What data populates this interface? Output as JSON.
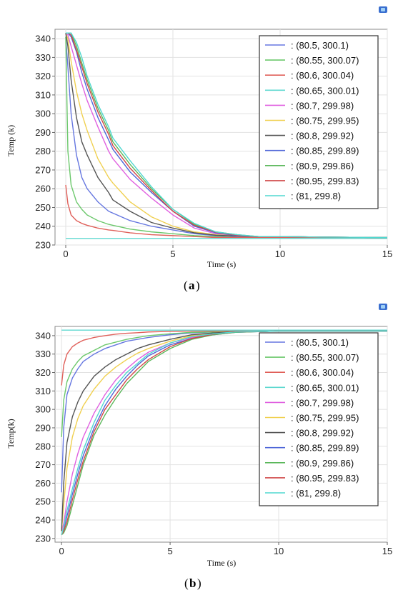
{
  "legend_labels": [
    ": (80.5, 300.1)",
    ": (80.55, 300.07)",
    ": (80.6, 300.04)",
    ": (80.65, 300.01)",
    ": (80.7, 299.98)",
    ": (80.75, 299.95)",
    ": (80.8, 299.92)",
    ": (80.85, 299.89)",
    ": (80.9, 299.86)",
    ": (80.95, 299.83)",
    ": (81, 299.8)"
  ],
  "colors": [
    "#6677e0",
    "#6cc86c",
    "#e0605a",
    "#5fd8d0",
    "#e060e0",
    "#f0d050",
    "#555555",
    "#4f67d8",
    "#5cb85c",
    "#d04848",
    "#50d8d0"
  ],
  "chart_data": [
    {
      "type": "line",
      "panel": "a",
      "xlabel": "Time (s)",
      "ylabel": "Temp (k)",
      "xlim": [
        -0.5,
        15
      ],
      "ylim": [
        230,
        345
      ],
      "xticks": [
        0,
        5,
        10,
        15
      ],
      "yticks": [
        230,
        240,
        250,
        260,
        270,
        280,
        290,
        300,
        310,
        320,
        330,
        340
      ],
      "grid": true,
      "legend_position": "top-right",
      "x": [
        0,
        0.1,
        0.25,
        0.5,
        0.75,
        1,
        1.5,
        2,
        2.2,
        3,
        4,
        5,
        6,
        7,
        8,
        9,
        10,
        12,
        15
      ],
      "series": [
        {
          "name": ": (80.5, 300.1)",
          "values": [
            341,
            325,
            300,
            278,
            266,
            260,
            253,
            248,
            247,
            243,
            240,
            238,
            236,
            235,
            234.5,
            234,
            234,
            234,
            233.8
          ]
        },
        {
          "name": ": (80.55, 300.07)",
          "values": [
            341,
            280,
            262,
            253,
            249,
            246,
            243,
            241,
            240.5,
            238.5,
            237,
            236,
            235,
            234.5,
            234,
            234,
            234,
            234,
            233.8
          ]
        },
        {
          "name": ": (80.6, 300.04)",
          "values": [
            262,
            252,
            246,
            243,
            241.5,
            240.5,
            239,
            238,
            237.8,
            236.5,
            235.5,
            235,
            234.5,
            234,
            234,
            234,
            234,
            233.8,
            233.8
          ]
        },
        {
          "name": ": (80.65, 300.01)",
          "values": [
            233.5,
            233.5,
            233.5,
            233.5,
            233.5,
            233.5,
            233.5,
            233.5,
            233.5,
            233.5,
            233.5,
            233.5,
            233.5,
            233.5,
            233.5,
            233.5,
            233.5,
            233.5,
            233.5
          ]
        },
        {
          "name": ": (80.7, 299.98)",
          "values": [
            343,
            342,
            336,
            326,
            316,
            307,
            293,
            280,
            276,
            265,
            255,
            246,
            239,
            236,
            235,
            234.5,
            234.5,
            234.2,
            234
          ]
        },
        {
          "name": ": (80.75, 299.95)",
          "values": [
            343,
            340,
            328,
            312,
            300,
            291,
            276,
            266,
            263,
            253,
            245,
            240,
            237,
            235.5,
            234.8,
            234.5,
            234.5,
            234.2,
            234
          ]
        },
        {
          "name": ": (80.8, 299.92)",
          "values": [
            343,
            336,
            318,
            298,
            285,
            278,
            266,
            258,
            254,
            248,
            242,
            239,
            236.5,
            235.2,
            234.8,
            234.5,
            234.5,
            234.2,
            234
          ]
        },
        {
          "name": ": (80.85, 299.89)",
          "values": [
            343,
            343,
            341,
            333,
            322,
            313,
            298,
            286,
            281,
            269,
            258,
            248,
            240,
            236.5,
            235,
            234.5,
            234.5,
            234.2,
            234
          ]
        },
        {
          "name": ": (80.9, 299.86)",
          "values": [
            343,
            343,
            343,
            336,
            327,
            318,
            303,
            291,
            285,
            273,
            260,
            249,
            241,
            237,
            235.5,
            234.5,
            234.5,
            234.2,
            234
          ]
        },
        {
          "name": ": (80.95, 299.83)",
          "values": [
            343,
            343,
            342,
            334,
            325,
            316,
            301,
            289,
            283,
            271,
            259,
            248,
            240.5,
            236.8,
            235.2,
            234.5,
            234.5,
            234.2,
            234
          ]
        },
        {
          "name": ": (81, 299.8)",
          "values": [
            343,
            343,
            343,
            338,
            330,
            320,
            305,
            293,
            287,
            275,
            261,
            249,
            241.5,
            237,
            235.5,
            234.5,
            234.5,
            234.2,
            234
          ]
        }
      ]
    },
    {
      "type": "line",
      "panel": "b",
      "xlabel": "Time (s)",
      "ylabel": "Temp(k)",
      "xlim": [
        -0.3,
        15
      ],
      "ylim": [
        228,
        345
      ],
      "xticks": [
        0,
        5,
        10,
        15
      ],
      "yticks": [
        230,
        240,
        250,
        260,
        270,
        280,
        290,
        300,
        310,
        320,
        330,
        340
      ],
      "grid": true,
      "legend_position": "top-right",
      "x": [
        0,
        0.1,
        0.25,
        0.5,
        0.75,
        1,
        1.5,
        2,
        2.5,
        3,
        3.5,
        4,
        5,
        6,
        7,
        8,
        10,
        12,
        15
      ],
      "series": [
        {
          "name": ": (80.5, 300.1)",
          "values": [
            255,
            290,
            308,
            317,
            322,
            326,
            330,
            333,
            335,
            337,
            338,
            339,
            340.5,
            341.5,
            342,
            342.5,
            342.5,
            342.5,
            342.5
          ]
        },
        {
          "name": ": (80.55, 300.07)",
          "values": [
            285,
            305,
            315,
            322,
            326,
            329,
            332,
            335,
            336.5,
            338,
            339,
            340,
            341,
            341.8,
            342,
            342.5,
            342.5,
            342.5,
            342.5
          ]
        },
        {
          "name": ": (80.6, 300.04)",
          "values": [
            313,
            324,
            330,
            334,
            336,
            337.5,
            339,
            340,
            340.8,
            341.3,
            341.6,
            342,
            342.3,
            342.5,
            342.5,
            342.5,
            342.5,
            342.5,
            342.5
          ]
        },
        {
          "name": ": (80.65, 300.01)",
          "values": [
            343,
            343,
            343,
            343,
            343,
            343,
            343,
            343,
            343,
            343,
            343,
            343,
            343,
            343,
            343,
            343,
            343,
            343,
            343
          ]
        },
        {
          "name": ": (80.7, 299.98)",
          "values": [
            234,
            238,
            250,
            265,
            276,
            285,
            298,
            308,
            316,
            322,
            327,
            331,
            336,
            339,
            341,
            342,
            342.5,
            342.5,
            342.5
          ]
        },
        {
          "name": ": (80.75, 299.95)",
          "values": [
            234,
            248,
            268,
            285,
            295,
            302,
            311,
            318,
            323,
            327,
            330.5,
            333,
            337,
            340,
            341.5,
            342,
            342.5,
            342.5,
            342.5
          ]
        },
        {
          "name": ": (80.8, 299.92)",
          "values": [
            234,
            260,
            282,
            296,
            304,
            310,
            318,
            323,
            327,
            330,
            333,
            335,
            338,
            340.5,
            341.5,
            342,
            342.5,
            342.5,
            342.5
          ]
        },
        {
          "name": ": (80.85, 299.89)",
          "values": [
            232,
            235,
            242,
            254,
            265,
            275,
            290,
            302,
            311,
            318,
            324,
            329,
            335,
            338.5,
            340.5,
            341.8,
            342.5,
            342.5,
            342.5
          ]
        },
        {
          "name": ": (80.9, 299.86)",
          "values": [
            232,
            233,
            237,
            248,
            259,
            270,
            286,
            297,
            306,
            314,
            320,
            326,
            333,
            338,
            340.5,
            341.8,
            342.5,
            342.5,
            342.5
          ]
        },
        {
          "name": ": (80.95, 299.83)",
          "values": [
            232,
            234,
            239,
            251,
            262,
            272,
            288,
            300,
            308,
            316,
            322,
            327,
            334,
            338.5,
            340.8,
            342,
            342.5,
            342.5,
            342.5
          ]
        },
        {
          "name": ": (81, 299.8)",
          "values": [
            232,
            236,
            245,
            257,
            268,
            278,
            293,
            305,
            313,
            320,
            325,
            330,
            336,
            339.5,
            341,
            342,
            342.5,
            342.5,
            342.5
          ]
        }
      ]
    }
  ],
  "panel_labels": {
    "a": "a",
    "b": "b"
  }
}
